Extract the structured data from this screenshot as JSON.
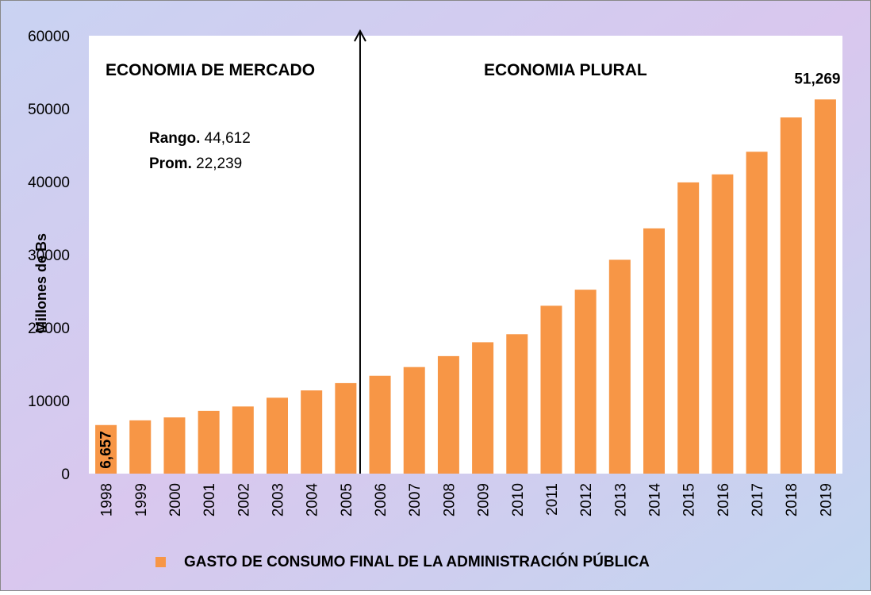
{
  "chart_data": {
    "type": "bar",
    "y_label": "Millones de Bs",
    "categories": [
      "1998",
      "1999",
      "2000",
      "2001",
      "2002",
      "2003",
      "2004",
      "2005",
      "2006",
      "2007",
      "2008",
      "2009",
      "2010",
      "2011",
      "2012",
      "2013",
      "2014",
      "2015",
      "2016",
      "2017",
      "2018",
      "2019"
    ],
    "series": [
      {
        "name": "GASTO DE CONSUMO FINAL DE LA ADMINISTRACIÓN  PÚBLICA",
        "color": "#f79646",
        "values": [
          6657,
          7300,
          7700,
          8600,
          9200,
          10400,
          11400,
          12400,
          13400,
          14600,
          16100,
          18000,
          19100,
          23000,
          25200,
          29300,
          33600,
          39900,
          41000,
          44100,
          48800,
          51269
        ],
        "value_labels": [
          "6,657",
          null,
          null,
          null,
          null,
          null,
          null,
          null,
          null,
          null,
          null,
          null,
          null,
          null,
          null,
          null,
          null,
          null,
          null,
          null,
          null,
          "51,269"
        ]
      }
    ],
    "ylim": [
      0,
      60000
    ],
    "yticks": [
      0,
      10000,
      20000,
      30000,
      40000,
      50000,
      60000
    ],
    "grid": false,
    "annotations": {
      "left_region": "ECONOMIA DE MERCADO",
      "right_region": "ECONOMIA PLURAL",
      "rango_label": "Rango.",
      "rango_value": "44,612",
      "prom_label": "Prom.",
      "prom_value": "22,239"
    }
  }
}
